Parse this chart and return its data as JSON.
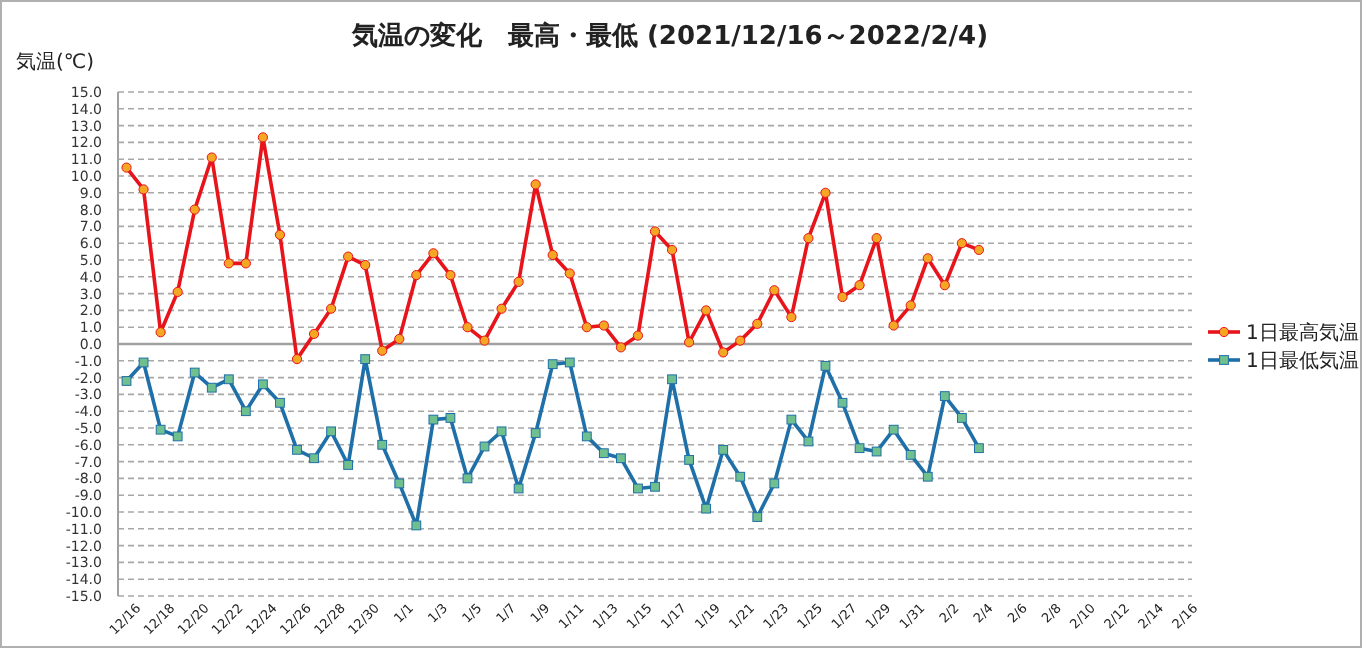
{
  "chart_data": {
    "type": "line",
    "title": "気温の変化　最高・最低 (2021/12/16～2022/2/4)",
    "ylabel": "気温(℃)",
    "categories": [
      "12/16",
      null,
      "12/18",
      null,
      "12/20",
      null,
      "12/22",
      null,
      "12/24",
      null,
      "12/26",
      null,
      "12/28",
      null,
      "12/30",
      null,
      "1/1",
      null,
      "1/3",
      null,
      "1/5",
      null,
      "1/7",
      null,
      "1/9",
      null,
      "1/11",
      null,
      "1/13",
      null,
      "1/15",
      null,
      "1/17",
      null,
      "1/19",
      null,
      "1/21",
      null,
      "1/23",
      null,
      "1/25",
      null,
      "1/27",
      null,
      "1/29",
      null,
      "1/31",
      null,
      "2/2",
      null,
      "2/4",
      null,
      "2/6",
      null,
      "2/8",
      null,
      "2/10",
      null,
      "2/12",
      null,
      "2/14",
      null,
      "2/16"
    ],
    "series": [
      {
        "name": "1日最高気温",
        "color": "#e8141c",
        "marker": "circle",
        "values": [
          10.5,
          9.2,
          0.7,
          3.1,
          8.0,
          11.1,
          4.8,
          4.8,
          12.3,
          6.5,
          -0.9,
          0.6,
          2.1,
          5.2,
          4.7,
          -0.4,
          0.3,
          4.1,
          5.4,
          4.1,
          1.0,
          0.2,
          2.1,
          3.7,
          9.5,
          5.3,
          4.2,
          1.0,
          1.1,
          -0.2,
          0.5,
          6.7,
          5.6,
          0.1,
          2.0,
          -0.5,
          0.2,
          1.2,
          3.2,
          1.6,
          6.3,
          9.0,
          2.8,
          3.5,
          6.3,
          1.1,
          2.3,
          5.1,
          3.5,
          6.0,
          5.6,
          null,
          null,
          null,
          null,
          null,
          null,
          null,
          null,
          null,
          null,
          null,
          null
        ]
      },
      {
        "name": "1日最低気温",
        "color": "#1f6fa8",
        "marker": "square",
        "values": [
          -2.2,
          -1.1,
          -5.1,
          -5.5,
          -1.7,
          -2.6,
          -2.1,
          -4.0,
          -2.4,
          -3.5,
          -6.3,
          -6.8,
          -5.2,
          -7.2,
          -0.9,
          -6.0,
          -8.3,
          -10.8,
          -4.5,
          -4.4,
          -8.0,
          -6.1,
          -5.2,
          -8.6,
          -5.3,
          -1.2,
          -1.1,
          -5.5,
          -6.5,
          -6.8,
          -8.6,
          -8.5,
          -2.1,
          -6.9,
          -9.8,
          -6.3,
          -7.9,
          -10.3,
          -8.3,
          -4.5,
          -5.8,
          -1.3,
          -3.5,
          -6.2,
          -6.4,
          -5.1,
          -6.6,
          -7.9,
          -3.1,
          -4.4,
          -6.2,
          null,
          null,
          null,
          null,
          null,
          null,
          null,
          null,
          null,
          null,
          null,
          null
        ]
      }
    ],
    "ylim": [
      -15,
      15
    ],
    "yticks": [
      {
        "value": 15,
        "label": "15.0"
      },
      {
        "value": 14,
        "label": "14.0"
      },
      {
        "value": 13,
        "label": "13.0"
      },
      {
        "value": 12,
        "label": "12.0"
      },
      {
        "value": 11,
        "label": "11.0"
      },
      {
        "value": 10,
        "label": "10.0"
      },
      {
        "value": 9,
        "label": "9.0"
      },
      {
        "value": 8,
        "label": "8.0"
      },
      {
        "value": 7,
        "label": "7.0"
      },
      {
        "value": 6,
        "label": "6.0"
      },
      {
        "value": 5,
        "label": "5.0"
      },
      {
        "value": 4,
        "label": "4.0"
      },
      {
        "value": 3,
        "label": "3.0"
      },
      {
        "value": 2,
        "label": "2.0"
      },
      {
        "value": 1,
        "label": "1.0"
      },
      {
        "value": 0,
        "label": "0.0"
      },
      {
        "value": -1,
        "label": "-1.0"
      },
      {
        "value": -2,
        "label": "-2.0"
      },
      {
        "value": -3,
        "label": "-3.0"
      },
      {
        "value": -4,
        "label": "-4.0"
      },
      {
        "value": -5,
        "label": "-5.0"
      },
      {
        "value": -6,
        "label": "-6.0"
      },
      {
        "value": -7,
        "label": "-7.0"
      },
      {
        "value": -8,
        "label": "-8.0"
      },
      {
        "value": -9,
        "label": "-9.0"
      },
      {
        "value": -10,
        "label": "-10.0"
      },
      {
        "value": -11,
        "label": "-11.0"
      },
      {
        "value": -12,
        "label": "-12.0"
      },
      {
        "value": -13,
        "label": "-13.0"
      },
      {
        "value": -14,
        "label": "-14.0"
      },
      {
        "value": -15,
        "label": "-15.0"
      }
    ],
    "grid": "y",
    "legend": "right",
    "line_style": "solid"
  }
}
